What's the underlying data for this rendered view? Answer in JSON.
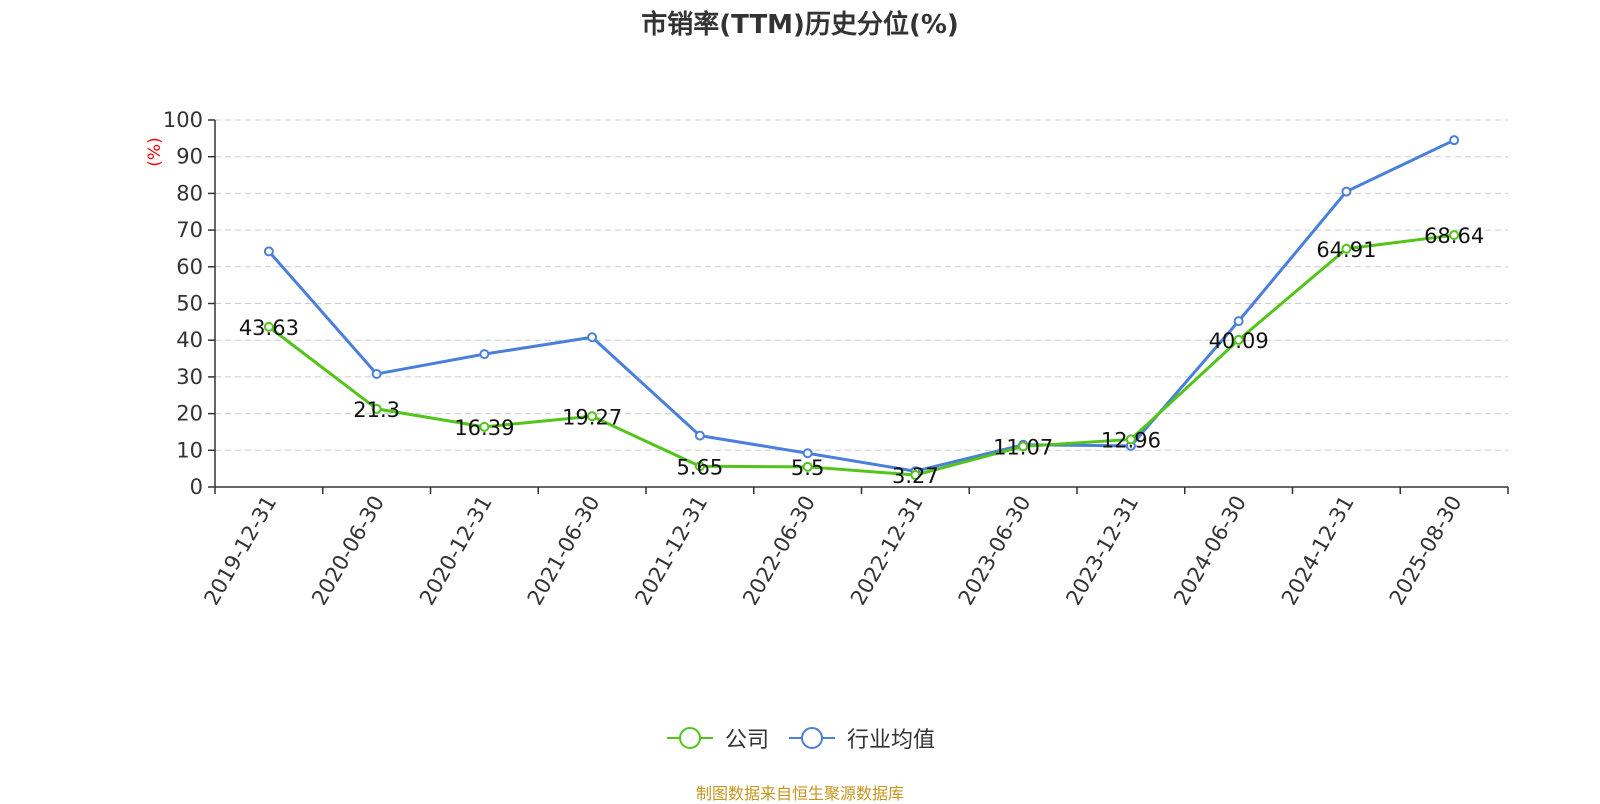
{
  "chart_data": {
    "type": "line",
    "title": "市销率(TTM)历史分位(%)",
    "ylabel": "(%)",
    "xlabel": "",
    "ylim": [
      0,
      100
    ],
    "yticks": [
      0,
      10,
      20,
      30,
      40,
      50,
      60,
      70,
      80,
      90,
      100
    ],
    "categories": [
      "2019-12-31",
      "2020-06-30",
      "2020-12-31",
      "2021-06-30",
      "2021-12-31",
      "2022-06-30",
      "2022-12-31",
      "2023-06-30",
      "2023-12-31",
      "2024-06-30",
      "2024-12-31",
      "2025-08-30"
    ],
    "grid": true,
    "legend_position": "bottom",
    "series": [
      {
        "name": "公司",
        "color": "#52c41a",
        "show_labels": true,
        "values": [
          43.63,
          21.3,
          16.39,
          19.27,
          5.65,
          5.5,
          3.27,
          11.07,
          12.96,
          40.09,
          64.91,
          68.64
        ]
      },
      {
        "name": "行业均值",
        "color": "#4a7fdb",
        "show_labels": false,
        "values": [
          64.2,
          30.8,
          36.2,
          40.8,
          14.0,
          9.2,
          4.3,
          11.5,
          11.2,
          45.2,
          80.5,
          94.5
        ]
      }
    ]
  },
  "legend": {
    "company_label": "公司",
    "industry_label": "行业均值"
  },
  "source_note": "制图数据来自恒生聚源数据库",
  "colors": {
    "title": "#333333",
    "axis_label": "#ff0000",
    "grid": "#cccccc",
    "source": "#c8941f"
  }
}
